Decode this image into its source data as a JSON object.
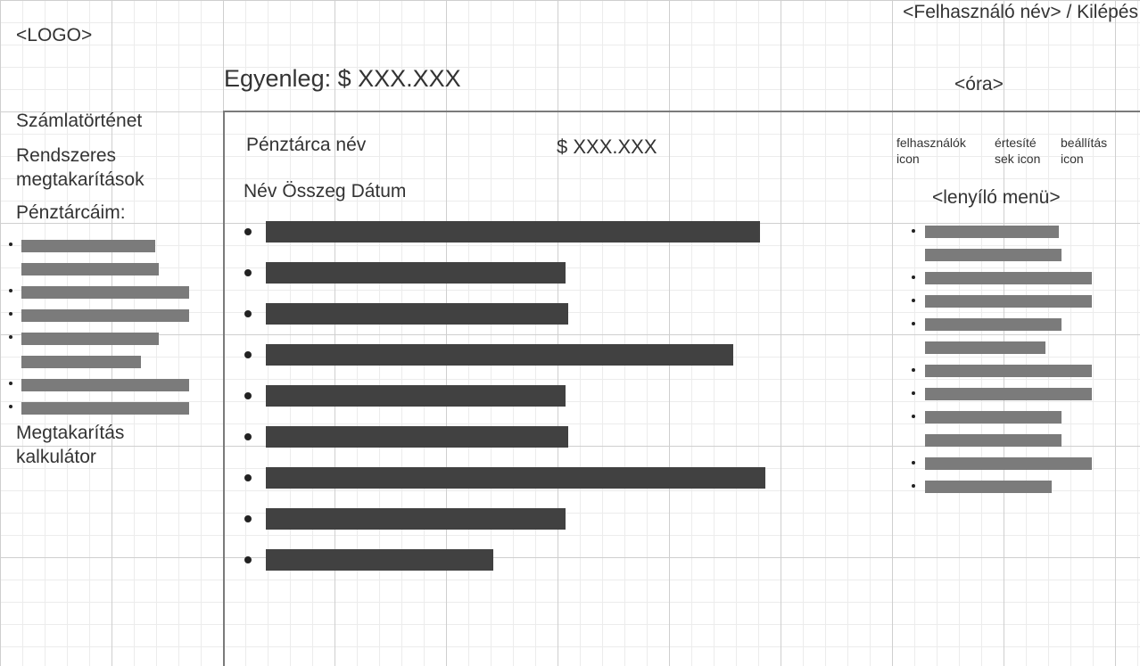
{
  "header": {
    "logo": "<LOGO>",
    "user_area": "<Felhasználó név> / Kilépés",
    "balance": "Egyenleg: $ XXX.XXX",
    "clock": "<óra>"
  },
  "sidebar": {
    "history": "Számlatörténet",
    "recurring_line1": "Rendszeres",
    "recurring_line2": "megtakarítások",
    "wallets": "Pénztárcáim:",
    "calculator_line1": "Megtakarítás",
    "calculator_line2": "kalkulátor",
    "wallet_items": [
      {
        "bars": [
          0.75,
          0.77
        ]
      },
      {
        "bars": [
          0.94
        ]
      },
      {
        "bars": [
          0.94
        ]
      },
      {
        "bars": [
          0.77,
          0.67
        ]
      },
      {
        "bars": [
          0.94
        ]
      },
      {
        "bars": [
          0.94
        ]
      }
    ]
  },
  "main": {
    "wallet_name": "Pénztárca név",
    "wallet_amount": "$ XXX.XXX",
    "col_name": "Név",
    "col_amount": "Összeg",
    "col_date": "Dátum",
    "transactions": [
      0.99,
      0.6,
      0.605,
      0.935,
      0.6,
      0.605,
      1.0,
      0.6,
      0.455
    ]
  },
  "right_panel": {
    "users_icon_label": "felhasználók icon",
    "notifications_icon_label": "értesítések icon",
    "notifications_line1": "értesíté",
    "notifications_line2": "sek icon",
    "settings_icon_label": "beállítás icon",
    "settings_line1": "beállítás",
    "settings_line2": "icon",
    "users_line1": "felhasználók",
    "users_line2": "icon",
    "dropdown": "<lenyíló menü>",
    "menu_items": [
      {
        "bars": [
          0.8,
          0.82
        ]
      },
      {
        "bars": [
          1.0
        ]
      },
      {
        "bars": [
          1.0
        ]
      },
      {
        "bars": [
          0.82,
          0.72
        ]
      },
      {
        "bars": [
          1.0
        ]
      },
      {
        "bars": [
          1.0
        ]
      },
      {
        "bars": [
          0.82,
          0.82
        ]
      },
      {
        "bars": [
          1.0
        ]
      },
      {
        "bars": [
          0.76
        ]
      }
    ]
  }
}
